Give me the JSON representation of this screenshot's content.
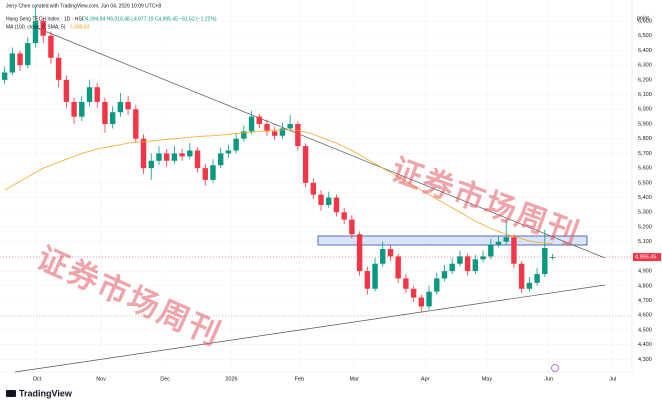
{
  "chart_data": {
    "type": "candlestick",
    "credit": "Jerry Chen created with TradingView.com, Jun 04, 2026 10:09 UTC+8",
    "title": "Hang Seng TECH Index · 1D · HSI",
    "ohlc_text": "O4,994.94 H5,016.48 L4,977.19 C4,995.45 −61.52 (−1.22%)",
    "indicator_label": "MA (100, close, 0, SMA, 5)",
    "indicator_value_label": "5,088.83",
    "y_axis_unit": "point",
    "brand": "TradingView",
    "watermarks": [
      "证券市场周刊",
      "证券市场周刊"
    ],
    "up_color": "#089981",
    "down_color": "#f23645",
    "ma_color": "#f5a623",
    "grid": true,
    "xlim": [
      -0.6,
      81.3
    ],
    "ylim": [
      4214,
      6743
    ],
    "xticks": [
      {
        "value": 4.2,
        "label": "Oct"
      },
      {
        "value": 12.5,
        "label": "Nov"
      },
      {
        "value": 20.8,
        "label": "Dec"
      },
      {
        "value": 29.4,
        "label": "2026"
      },
      {
        "value": 38.2,
        "label": "Feb"
      },
      {
        "value": 45.3,
        "label": "Mar"
      },
      {
        "value": 54.5,
        "label": "Apr"
      },
      {
        "value": 62.5,
        "label": "May"
      },
      {
        "value": 70.5,
        "label": "Jun"
      },
      {
        "value": 78.8,
        "label": "Jul"
      }
    ],
    "yticks": [
      {
        "value": 4300,
        "label": "4,300"
      },
      {
        "value": 4400,
        "label": "4,400"
      },
      {
        "value": 4500,
        "label": "4,500"
      },
      {
        "value": 4600,
        "label": "4,600"
      },
      {
        "value": 4700,
        "label": "4,700"
      },
      {
        "value": 4800,
        "label": "4,800"
      },
      {
        "value": 4900,
        "label": "4,900"
      },
      {
        "value": 5000,
        "label": "5,000"
      },
      {
        "value": 5100,
        "label": "5,100"
      },
      {
        "value": 5200,
        "label": "5,200"
      },
      {
        "value": 5300,
        "label": "5,300"
      },
      {
        "value": 5400,
        "label": "5,400"
      },
      {
        "value": 5500,
        "label": "5,500"
      },
      {
        "value": 5600,
        "label": "5,600"
      },
      {
        "value": 5700,
        "label": "5,700"
      },
      {
        "value": 5800,
        "label": "5,800"
      },
      {
        "value": 5900,
        "label": "5,900"
      },
      {
        "value": 6000,
        "label": "6,000"
      },
      {
        "value": 6100,
        "label": "6,100"
      },
      {
        "value": 6200,
        "label": "6,200"
      },
      {
        "value": 6300,
        "label": "6,300"
      },
      {
        "value": 6400,
        "label": "6,400"
      },
      {
        "value": 6500,
        "label": "6,500"
      },
      {
        "value": 6600,
        "label": "6,600"
      }
    ],
    "last_price": {
      "value": 4995.45,
      "label": "4,995.45"
    },
    "candles": [
      [
        6200,
        6290,
        6170,
        6250
      ],
      [
        6250,
        6420,
        6230,
        6380
      ],
      [
        6380,
        6400,
        6260,
        6300
      ],
      [
        6300,
        6490,
        6280,
        6450
      ],
      [
        6450,
        6700,
        6420,
        6600
      ],
      [
        6600,
        6620,
        6450,
        6500
      ],
      [
        6500,
        6530,
        6310,
        6350
      ],
      [
        6350,
        6380,
        6150,
        6200
      ],
      [
        6200,
        6230,
        6010,
        6050
      ],
      [
        6050,
        6080,
        5900,
        5950
      ],
      [
        5950,
        6090,
        5920,
        6050
      ],
      [
        6050,
        6200,
        6020,
        6150
      ],
      [
        6150,
        6180,
        6010,
        6050
      ],
      [
        6050,
        6080,
        5840,
        5900
      ],
      [
        5900,
        6020,
        5870,
        5980
      ],
      [
        5980,
        6110,
        5950,
        6050
      ],
      [
        6050,
        6090,
        5960,
        6000
      ],
      [
        6000,
        6030,
        5770,
        5800
      ],
      [
        5800,
        5830,
        5560,
        5600
      ],
      [
        5600,
        5700,
        5520,
        5650
      ],
      [
        5650,
        5750,
        5620,
        5700
      ],
      [
        5700,
        5730,
        5610,
        5650
      ],
      [
        5650,
        5750,
        5630,
        5700
      ],
      [
        5700,
        5730,
        5650,
        5680
      ],
      [
        5680,
        5770,
        5660,
        5720
      ],
      [
        5720,
        5740,
        5570,
        5600
      ],
      [
        5600,
        5630,
        5480,
        5520
      ],
      [
        5520,
        5660,
        5500,
        5620
      ],
      [
        5620,
        5740,
        5600,
        5700
      ],
      [
        5700,
        5760,
        5670,
        5720
      ],
      [
        5720,
        5840,
        5700,
        5800
      ],
      [
        5800,
        5890,
        5780,
        5850
      ],
      [
        5850,
        5990,
        5830,
        5950
      ],
      [
        5950,
        5970,
        5870,
        5900
      ],
      [
        5900,
        5930,
        5820,
        5850
      ],
      [
        5850,
        5880,
        5790,
        5820
      ],
      [
        5820,
        5910,
        5800,
        5870
      ],
      [
        5870,
        5960,
        5850,
        5900
      ],
      [
        5900,
        5920,
        5720,
        5750
      ],
      [
        5750,
        5770,
        5470,
        5500
      ],
      [
        5500,
        5530,
        5390,
        5420
      ],
      [
        5420,
        5450,
        5310,
        5350
      ],
      [
        5350,
        5440,
        5330,
        5400
      ],
      [
        5400,
        5420,
        5270,
        5300
      ],
      [
        5300,
        5330,
        5220,
        5250
      ],
      [
        5250,
        5280,
        5120,
        5150
      ],
      [
        5150,
        5170,
        4870,
        4900
      ],
      [
        4900,
        4930,
        4740,
        4780
      ],
      [
        4780,
        4990,
        4760,
        4950
      ],
      [
        4950,
        5100,
        4930,
        5050
      ],
      [
        5050,
        5080,
        4970,
        5000
      ],
      [
        5000,
        5020,
        4820,
        4850
      ],
      [
        4850,
        4880,
        4750,
        4780
      ],
      [
        4780,
        4800,
        4690,
        4720
      ],
      [
        4720,
        4740,
        4620,
        4660
      ],
      [
        4660,
        4800,
        4640,
        4760
      ],
      [
        4760,
        4890,
        4740,
        4850
      ],
      [
        4850,
        4940,
        4830,
        4900
      ],
      [
        4900,
        4990,
        4880,
        4950
      ],
      [
        4950,
        5040,
        4930,
        5000
      ],
      [
        5000,
        5020,
        4870,
        4900
      ],
      [
        4900,
        5010,
        4880,
        4980
      ],
      [
        4980,
        5040,
        4960,
        5000
      ],
      [
        5000,
        5120,
        4980,
        5080
      ],
      [
        5080,
        5140,
        5060,
        5100
      ],
      [
        5100,
        5250,
        5080,
        5130
      ],
      [
        5130,
        5150,
        4920,
        4950
      ],
      [
        4950,
        4970,
        4750,
        4780
      ],
      [
        4780,
        4860,
        4760,
        4820
      ],
      [
        4820,
        4920,
        4800,
        4880
      ],
      [
        4880,
        5180,
        4860,
        5056.97
      ],
      [
        4994.94,
        5016.48,
        4977.19,
        4995.45
      ]
    ],
    "ma": [
      5450,
      5480,
      5510,
      5540,
      5570,
      5600,
      5620,
      5640,
      5660,
      5680,
      5700,
      5715,
      5730,
      5740,
      5750,
      5760,
      5770,
      5775,
      5780,
      5785,
      5790,
      5795,
      5800,
      5805,
      5810,
      5815,
      5818,
      5820,
      5825,
      5830,
      5835,
      5840,
      5845,
      5850,
      5855,
      5858,
      5860,
      5860,
      5855,
      5845,
      5830,
      5810,
      5790,
      5770,
      5745,
      5720,
      5690,
      5660,
      5630,
      5600,
      5570,
      5540,
      5510,
      5480,
      5450,
      5420,
      5390,
      5360,
      5330,
      5300,
      5270,
      5240,
      5215,
      5190,
      5170,
      5150,
      5135,
      5120,
      5105,
      5095,
      5090,
      5088.83
    ]
  }
}
